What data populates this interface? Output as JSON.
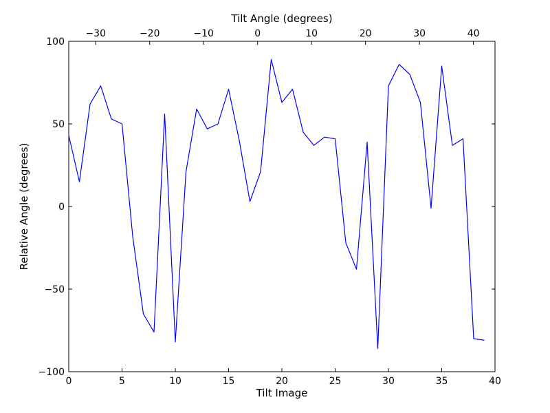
{
  "chart_data": {
    "type": "line",
    "xlabel": "Tilt Image",
    "ylabel": "Relative Angle (degrees)",
    "top_xlabel": "Tilt Angle (degrees)",
    "xlim": [
      0,
      40
    ],
    "ylim": [
      -100,
      100
    ],
    "top_xlim": [
      -35,
      44
    ],
    "x_ticks": [
      0,
      5,
      10,
      15,
      20,
      25,
      30,
      35,
      40
    ],
    "x_tick_labels": [
      "0",
      "5",
      "10",
      "15",
      "20",
      "25",
      "30",
      "35",
      "40"
    ],
    "y_ticks": [
      -100,
      -50,
      0,
      50,
      100
    ],
    "y_tick_labels": [
      "−100",
      "−50",
      "0",
      "50",
      "100"
    ],
    "top_ticks": [
      -30,
      -20,
      -10,
      0,
      10,
      20,
      30,
      40
    ],
    "top_tick_labels": [
      "−30",
      "−20",
      "−10",
      "0",
      "10",
      "20",
      "30",
      "40"
    ],
    "grid": false,
    "line_color": "#0000ff",
    "series": [
      {
        "x": [
          0,
          1,
          2,
          3,
          4,
          5,
          6,
          7,
          8,
          9,
          10,
          11,
          12,
          13,
          14,
          15,
          16,
          17,
          18,
          19,
          20,
          21,
          22,
          23,
          24,
          25,
          26,
          27,
          28,
          29,
          30,
          31,
          32,
          33,
          34,
          35,
          36,
          37,
          38,
          39
        ],
        "values": [
          43,
          15,
          62,
          73,
          53,
          50,
          -18,
          -65,
          -76,
          56,
          -82,
          21,
          59,
          47,
          50,
          71,
          40,
          3,
          21,
          89,
          63,
          71,
          45,
          37,
          42,
          41,
          -22,
          -38,
          39,
          -86,
          73,
          86,
          80,
          63,
          -1,
          85,
          37,
          41,
          -80,
          -81
        ]
      }
    ]
  }
}
